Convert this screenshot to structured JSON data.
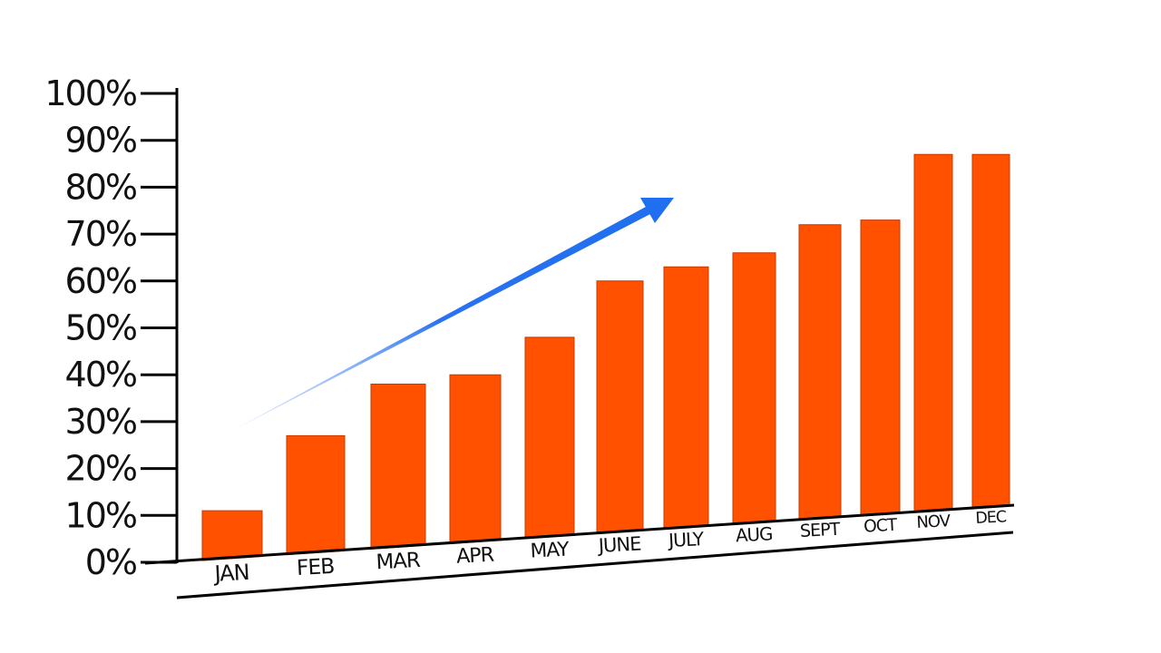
{
  "chart_data": {
    "type": "bar",
    "title": "",
    "xlabel": "",
    "ylabel": "",
    "categories": [
      "JAN",
      "FEB",
      "MAR",
      "APR",
      "MAY",
      "JUNE",
      "JULY",
      "AUG",
      "SEPT",
      "OCT",
      "NOV",
      "DEC"
    ],
    "values": [
      11,
      27,
      38,
      40,
      48,
      60,
      63,
      66,
      72,
      73,
      87,
      87
    ],
    "ylim": [
      0,
      100
    ],
    "yticks": [
      "0%",
      "10%",
      "20%",
      "30%",
      "40%",
      "50%",
      "60%",
      "70%",
      "80%",
      "90%",
      "100%"
    ],
    "grid": false,
    "legend": "none",
    "annotation": "upward trend arrow",
    "colors": {
      "bar": "#ff5100",
      "arrow": "#1f6ff0",
      "axis": "#000000"
    }
  }
}
